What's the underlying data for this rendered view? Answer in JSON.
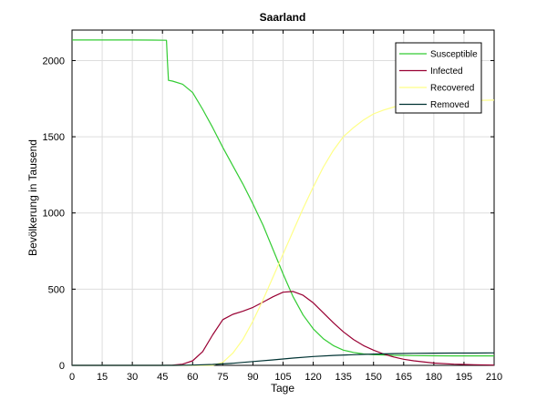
{
  "chart_data": {
    "type": "line",
    "title": "Saarland",
    "xlabel": "Tage",
    "ylabel": "Bevölkerung in Tausend",
    "xlim": [
      0,
      210
    ],
    "ylim": [
      0,
      2200
    ],
    "x_ticks": [
      0,
      15,
      30,
      45,
      60,
      75,
      90,
      105,
      120,
      135,
      150,
      165,
      180,
      195,
      210
    ],
    "y_ticks": [
      0,
      500,
      1000,
      1500,
      2000
    ],
    "grid": true,
    "legend_position": "top-right",
    "series": [
      {
        "name": "Susceptible",
        "color": "#33cc33",
        "x": [
          0,
          10,
          20,
          30,
          40,
          47,
          47.5,
          48,
          50,
          55,
          60,
          65,
          70,
          75,
          80,
          85,
          90,
          95,
          100,
          105,
          110,
          115,
          120,
          125,
          130,
          135,
          140,
          145,
          150,
          155,
          160,
          170,
          180,
          190,
          200,
          210
        ],
        "y": [
          2135,
          2135,
          2135,
          2135,
          2134,
          2133,
          1990,
          1870,
          1865,
          1845,
          1790,
          1680,
          1560,
          1430,
          1310,
          1190,
          1060,
          920,
          760,
          600,
          450,
          330,
          240,
          175,
          130,
          100,
          85,
          75,
          70,
          68,
          66,
          64,
          63,
          62,
          62,
          62
        ]
      },
      {
        "name": "Infected",
        "color": "#990033",
        "x": [
          0,
          45,
          50,
          55,
          60,
          65,
          70,
          75,
          80,
          85,
          90,
          95,
          100,
          105,
          110,
          115,
          120,
          125,
          130,
          135,
          140,
          145,
          150,
          155,
          160,
          165,
          170,
          180,
          190,
          200,
          210
        ],
        "y": [
          0,
          0,
          2,
          8,
          30,
          90,
          200,
          300,
          335,
          355,
          380,
          415,
          450,
          480,
          485,
          460,
          410,
          345,
          280,
          220,
          170,
          130,
          100,
          75,
          55,
          40,
          30,
          15,
          8,
          4,
          2
        ]
      },
      {
        "name": "Recovered",
        "color": "#ffff88",
        "x": [
          0,
          70,
          75,
          80,
          85,
          90,
          95,
          100,
          105,
          110,
          115,
          120,
          125,
          130,
          135,
          140,
          145,
          150,
          155,
          160,
          165,
          170,
          180,
          190,
          200,
          210
        ],
        "y": [
          0,
          0,
          20,
          80,
          170,
          290,
          430,
          580,
          730,
          880,
          1030,
          1170,
          1300,
          1410,
          1500,
          1560,
          1610,
          1650,
          1675,
          1695,
          1710,
          1720,
          1730,
          1735,
          1738,
          1740
        ]
      },
      {
        "name": "Removed",
        "color": "#003333",
        "x": [
          0,
          50,
          60,
          70,
          80,
          90,
          100,
          110,
          120,
          130,
          140,
          150,
          160,
          170,
          180,
          190,
          200,
          210
        ],
        "y": [
          0,
          0,
          2,
          6,
          14,
          25,
          36,
          48,
          58,
          65,
          70,
          74,
          77,
          79,
          80,
          81,
          81,
          82
        ]
      }
    ]
  }
}
